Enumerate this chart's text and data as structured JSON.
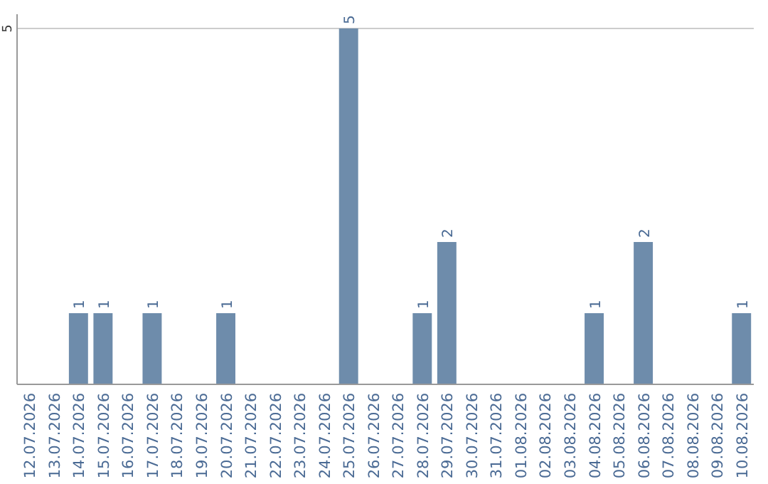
{
  "chart_data": {
    "type": "bar",
    "categories": [
      "12.07.2026",
      "13.07.2026",
      "14.07.2026",
      "15.07.2026",
      "16.07.2026",
      "17.07.2026",
      "18.07.2026",
      "19.07.2026",
      "20.07.2026",
      "21.07.2026",
      "22.07.2026",
      "23.07.2026",
      "24.07.2026",
      "25.07.2026",
      "26.07.2026",
      "27.07.2026",
      "28.07.2026",
      "29.07.2026",
      "30.07.2026",
      "31.07.2026",
      "01.08.2026",
      "02.08.2026",
      "03.08.2026",
      "04.08.2026",
      "05.08.2026",
      "06.08.2026",
      "07.08.2026",
      "08.08.2026",
      "09.08.2026",
      "10.08.2026"
    ],
    "values": [
      null,
      null,
      1,
      1,
      null,
      1,
      null,
      null,
      1,
      null,
      null,
      null,
      null,
      5,
      null,
      null,
      1,
      2,
      null,
      null,
      null,
      null,
      null,
      1,
      null,
      2,
      null,
      null,
      null,
      1
    ],
    "color": "#6e8cab",
    "ylim": [
      0,
      5.2
    ],
    "yticks": [
      5
    ],
    "grid": "y",
    "data_labels": true
  }
}
